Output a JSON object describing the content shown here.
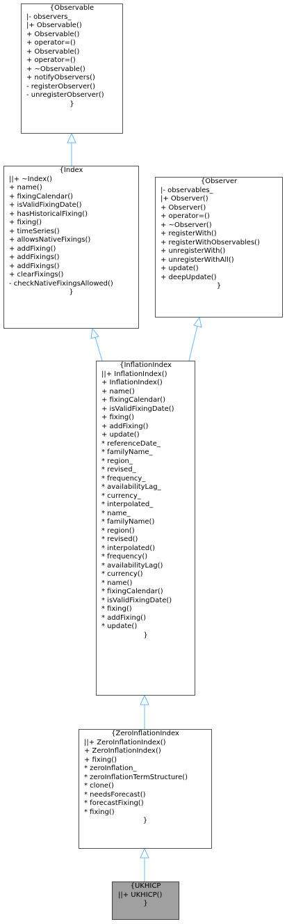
{
  "colors": {
    "edge": "#63b8ff",
    "border": "#505050",
    "highlight": "#a0a0a0"
  },
  "closing_brace": "}",
  "classes": {
    "observable": {
      "title": "{Observable",
      "members": [
        "|- observers_",
        "|+ Observable()",
        "+ Observable()",
        "+ operator=()",
        "+ Observable()",
        "+ operator=()",
        "+ ~Observable()",
        "+ notifyObservers()",
        "- registerObserver()",
        "- unregisterObserver()"
      ]
    },
    "index": {
      "title": "{Index",
      "members": [
        "||+ ~Index()",
        "+ name()",
        "+ fixingCalendar()",
        "+ isValidFixingDate()",
        "+ hasHistoricalFixing()",
        "+ fixing()",
        "+ timeSeries()",
        "+ allowsNativeFixings()",
        "+ addFixing()",
        "+ addFixings()",
        "+ addFixings()",
        "+ clearFixings()",
        "- checkNativeFixingsAllowed()"
      ]
    },
    "observer": {
      "title": "{Observer",
      "members": [
        "|- observables_",
        "|+ Observer()",
        "+ Observer()",
        "+ operator=()",
        "+ ~Observer()",
        "+ registerWith()",
        "+ registerWithObservables()",
        "+ unregisterWith()",
        "+ unregisterWithAll()",
        "+ update()",
        "+ deepUpdate()"
      ]
    },
    "inflation_index": {
      "title": "{InflationIndex",
      "members": [
        "||+ InflationIndex()",
        "+ InflationIndex()",
        "+ name()",
        "+ fixingCalendar()",
        "+ isValidFixingDate()",
        "+ fixing()",
        "+ addFixing()",
        "+ update()",
        "* referenceDate_",
        "* familyName_",
        "* region_",
        "* revised_",
        "* frequency_",
        "* availabilityLag_",
        "* currency_",
        "* interpolated_",
        "* name_",
        "* familyName()",
        "* region()",
        "* revised()",
        "* interpolated()",
        "* frequency()",
        "* availabilityLag()",
        "* currency()",
        "* name()",
        "* fixingCalendar()",
        "* isValidFixingDate()",
        "* fixing()",
        "* addFixing()",
        "* update()"
      ]
    },
    "zero_inflation_index": {
      "title": "{ZeroInflationIndex",
      "members": [
        "||+ ZeroInflationIndex()",
        "+ ZeroInflationIndex()",
        "+ fixing()",
        "* zeroInflation_",
        "* zeroInflationTermStructure()",
        "* clone()",
        "* needsForecast()",
        "* forecastFixing()",
        "* fixing()"
      ]
    },
    "ukhicp": {
      "title": "{UKHICP",
      "members": [
        "||+ UKHICP()"
      ]
    }
  }
}
